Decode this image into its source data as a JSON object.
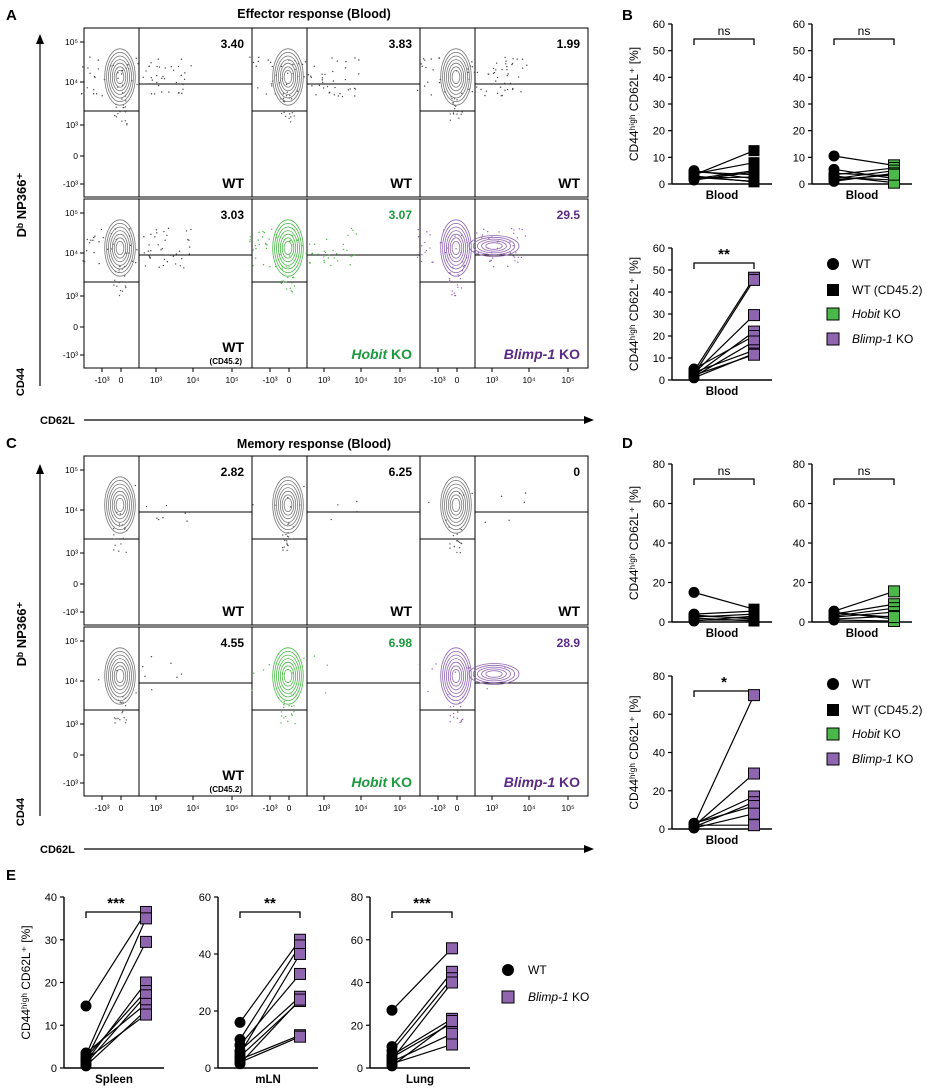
{
  "panel_letters": [
    "A",
    "B",
    "C",
    "D",
    "E"
  ],
  "axis_labels": {
    "flow_y_group": "Dᵇ NP366⁺",
    "flow_y": "CD44",
    "flow_x": "CD62L",
    "summary_y": "CD44ʰⁱᵍʰ CD62L⁺ [%]"
  },
  "flow_ticks": {
    "y": [
      "10⁵",
      "10⁴",
      "10³",
      "0",
      "-10³"
    ],
    "x": [
      "-10³",
      "0",
      "10³",
      "10⁴",
      "10⁵"
    ]
  },
  "legend": {
    "wt": "WT",
    "wt_cd45": "WT (CD45.2)",
    "hobit": "Hobit KO",
    "blimp": "Blimp-1 KO"
  },
  "colors": {
    "wt": "#000000",
    "hobit": "#4cb84a",
    "blimp": "#9065b0",
    "hobit_text": "#1c9a3e",
    "blimp_text": "#5a2a86",
    "contour_gray": "#777777"
  },
  "chart_data": [
    {
      "id": "A",
      "type": "flow_cytometry_grid",
      "title": "Effector response (Blood)",
      "xlabel": "CD62L",
      "ylabel": "CD44",
      "panels": [
        {
          "label": "WT",
          "sub": "",
          "value": "3.40",
          "kind": "wt"
        },
        {
          "label": "WT",
          "sub": "",
          "value": "3.83",
          "kind": "wt"
        },
        {
          "label": "WT",
          "sub": "",
          "value": "1.99",
          "kind": "wt"
        },
        {
          "label": "WT",
          "sub": "(CD45.2)",
          "value": "3.03",
          "kind": "wt"
        },
        {
          "label": "Hobit KO",
          "sub": "",
          "value": "3.07",
          "kind": "hobit"
        },
        {
          "label": "Blimp-1 KO",
          "sub": "",
          "value": "29.5",
          "kind": "blimp"
        }
      ]
    },
    {
      "id": "B",
      "type": "paired_scatter",
      "ylabel": "CD44ʰⁱᵍʰ CD62L⁺ [%]",
      "charts": [
        {
          "category": "Blood",
          "sig": "ns",
          "ylim": [
            0,
            60
          ],
          "yticks": [
            0,
            10,
            20,
            30,
            40,
            50,
            60
          ],
          "left": "wt",
          "right": "wt_cd45",
          "pairs": [
            [
              3.4,
              12.5
            ],
            [
              3.8,
              8.0
            ],
            [
              2.0,
              5.0
            ],
            [
              4.5,
              3.5
            ],
            [
              2.5,
              1.0
            ],
            [
              5.0,
              2.0
            ],
            [
              1.5,
              4.5
            ],
            [
              3.0,
              0.8
            ],
            [
              2.2,
              2.6
            ]
          ]
        },
        {
          "category": "Blood",
          "sig": "ns",
          "ylim": [
            0,
            60
          ],
          "yticks": [
            0,
            10,
            20,
            30,
            40,
            50,
            60
          ],
          "left": "wt",
          "right": "hobit",
          "pairs": [
            [
              10.5,
              7.0
            ],
            [
              3.5,
              6.0
            ],
            [
              4.0,
              3.0
            ],
            [
              2.0,
              5.0
            ],
            [
              1.0,
              4.0
            ],
            [
              5.5,
              2.0
            ],
            [
              2.5,
              1.5
            ],
            [
              3.0,
              0.5
            ],
            [
              1.5,
              3.5
            ]
          ]
        },
        {
          "category": "Blood",
          "sig": "**",
          "ylim": [
            0,
            60
          ],
          "yticks": [
            0,
            10,
            20,
            30,
            40,
            50,
            60
          ],
          "left": "wt",
          "right": "blimp",
          "pairs": [
            [
              4.0,
              46.5
            ],
            [
              2.5,
              45.5
            ],
            [
              3.0,
              29.5
            ],
            [
              2.0,
              22.0
            ],
            [
              5.0,
              20.0
            ],
            [
              1.5,
              17.5
            ],
            [
              3.5,
              13.5
            ],
            [
              1.0,
              12.0
            ],
            [
              2.2,
              11.5
            ]
          ]
        }
      ]
    },
    {
      "id": "C",
      "type": "flow_cytometry_grid",
      "title": "Memory response (Blood)",
      "xlabel": "CD62L",
      "ylabel": "CD44",
      "panels": [
        {
          "label": "WT",
          "sub": "",
          "value": "2.82",
          "kind": "wt"
        },
        {
          "label": "WT",
          "sub": "",
          "value": "6.25",
          "kind": "wt"
        },
        {
          "label": "WT",
          "sub": "",
          "value": "0",
          "kind": "wt"
        },
        {
          "label": "WT",
          "sub": "(CD45.2)",
          "value": "4.55",
          "kind": "wt"
        },
        {
          "label": "Hobit KO",
          "sub": "",
          "value": "6.98",
          "kind": "hobit"
        },
        {
          "label": "Blimp-1 KO",
          "sub": "",
          "value": "28.9",
          "kind": "blimp"
        }
      ]
    },
    {
      "id": "D",
      "type": "paired_scatter",
      "ylabel": "CD44ʰⁱᵍʰ CD62L⁺ [%]",
      "charts": [
        {
          "category": "Blood",
          "sig": "ns",
          "ylim": [
            0,
            80
          ],
          "yticks": [
            0,
            20,
            40,
            60,
            80
          ],
          "left": "wt",
          "right": "wt_cd45",
          "pairs": [
            [
              15.0,
              6.5
            ],
            [
              4.0,
              5.5
            ],
            [
              3.0,
              2.0
            ],
            [
              2.5,
              4.0
            ],
            [
              1.0,
              1.0
            ],
            [
              0.5,
              3.0
            ],
            [
              2.0,
              0.5
            ],
            [
              3.5,
              1.5
            ]
          ]
        },
        {
          "category": "Blood",
          "sig": "ns",
          "ylim": [
            0,
            80
          ],
          "yticks": [
            0,
            20,
            40,
            60,
            80
          ],
          "left": "wt",
          "right": "hobit",
          "pairs": [
            [
              5.5,
              15.5
            ],
            [
              4.0,
              9.0
            ],
            [
              3.0,
              7.0
            ],
            [
              2.5,
              5.0
            ],
            [
              1.5,
              3.0
            ],
            [
              5.0,
              1.5
            ],
            [
              1.0,
              0.5
            ],
            [
              4.5,
              2.5
            ]
          ]
        },
        {
          "category": "Blood",
          "sig": "*",
          "ylim": [
            0,
            80
          ],
          "yticks": [
            0,
            20,
            40,
            60,
            80
          ],
          "left": "wt",
          "right": "blimp",
          "pairs": [
            [
              2.0,
              70.0
            ],
            [
              1.5,
              29.0
            ],
            [
              2.5,
              17.0
            ],
            [
              1.0,
              14.0
            ],
            [
              3.0,
              12.0
            ],
            [
              0.5,
              8.0
            ],
            [
              2.0,
              2.0
            ]
          ]
        }
      ]
    },
    {
      "id": "E",
      "type": "paired_scatter",
      "ylabel": "CD44ʰⁱᵍʰ CD62L⁺ [%]",
      "charts": [
        {
          "category": "Spleen",
          "sig": "***",
          "ylim": [
            0,
            40
          ],
          "yticks": [
            0,
            10,
            20,
            30,
            40
          ],
          "left": "wt",
          "right": "blimp",
          "pairs": [
            [
              14.5,
              36.5
            ],
            [
              3.0,
              35.0
            ],
            [
              2.0,
              29.5
            ],
            [
              1.5,
              20.0
            ],
            [
              2.5,
              18.0
            ],
            [
              1.0,
              17.0
            ],
            [
              3.5,
              15.0
            ],
            [
              0.5,
              13.5
            ],
            [
              2.0,
              12.5
            ]
          ]
        },
        {
          "category": "mLN",
          "sig": "**",
          "ylim": [
            0,
            60
          ],
          "yticks": [
            0,
            20,
            40,
            60
          ],
          "left": "wt",
          "right": "blimp",
          "pairs": [
            [
              16.0,
              45.0
            ],
            [
              10.0,
              43.0
            ],
            [
              8.0,
              33.0
            ],
            [
              6.0,
              25.0
            ],
            [
              4.0,
              23.5
            ],
            [
              3.0,
              11.5
            ],
            [
              2.0,
              11.0
            ],
            [
              5.0,
              40.0
            ],
            [
              1.5,
              24.0
            ]
          ]
        },
        {
          "category": "Lung",
          "sig": "***",
          "ylim": [
            0,
            80
          ],
          "yticks": [
            0,
            20,
            40,
            60,
            80
          ],
          "left": "wt",
          "right": "blimp",
          "pairs": [
            [
              27.0,
              56.0
            ],
            [
              10.0,
              45.0
            ],
            [
              8.0,
              42.0
            ],
            [
              6.0,
              23.0
            ],
            [
              5.0,
              21.0
            ],
            [
              3.0,
              16.0
            ],
            [
              2.0,
              11.0
            ],
            [
              4.0,
              40.0
            ],
            [
              1.0,
              22.0
            ]
          ]
        }
      ]
    }
  ]
}
